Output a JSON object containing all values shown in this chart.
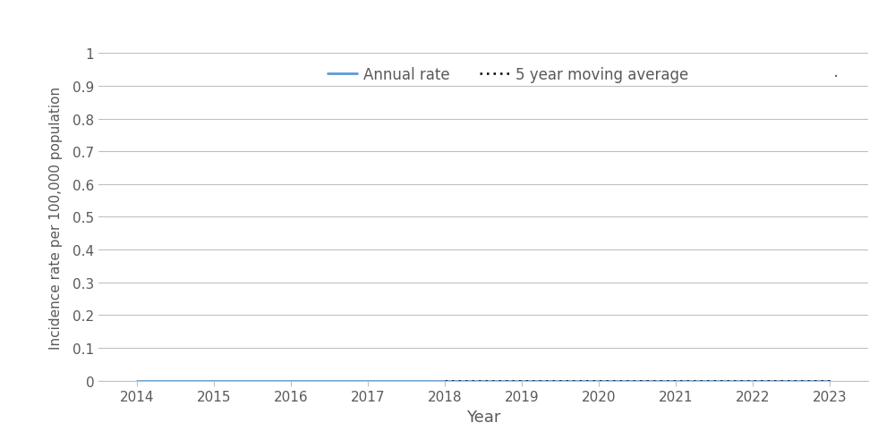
{
  "years": [
    2014,
    2015,
    2016,
    2017,
    2018,
    2019,
    2020,
    2021,
    2022,
    2023
  ],
  "annual_rate": [
    0.0,
    0.0,
    0.0,
    0.0,
    0.0,
    0.0,
    0.0,
    0.0,
    0.0,
    0.0
  ],
  "moving_avg_years": [
    2018,
    2019,
    2020,
    2021,
    2022,
    2023
  ],
  "moving_avg": [
    0.0,
    0.0,
    0.0,
    0.0,
    0.0,
    0.0
  ],
  "annual_rate_color": "#5B9BD5",
  "moving_avg_color": "#000000",
  "ylabel": "Incidence rate per 100,000 population",
  "xlabel": "Year",
  "ylim": [
    0,
    1.0
  ],
  "yticks": [
    0,
    0.1,
    0.2,
    0.3,
    0.4,
    0.5,
    0.6,
    0.7,
    0.8,
    0.9,
    1.0
  ],
  "ytick_labels": [
    "0",
    "0.1",
    "0.2",
    "0.3",
    "0.4",
    "0.5",
    "0.6",
    "0.7",
    "0.8",
    "0.9",
    "1"
  ],
  "xlim": [
    2013.5,
    2023.5
  ],
  "legend_annual_label": "Annual rate",
  "legend_moving_avg_label": "5 year moving average",
  "background_color": "#ffffff",
  "annotation_text": ".",
  "grid_color": "#C0C0C0",
  "spine_color": "#C0C0C0",
  "tick_label_color": "#595959",
  "axis_label_color": "#595959"
}
